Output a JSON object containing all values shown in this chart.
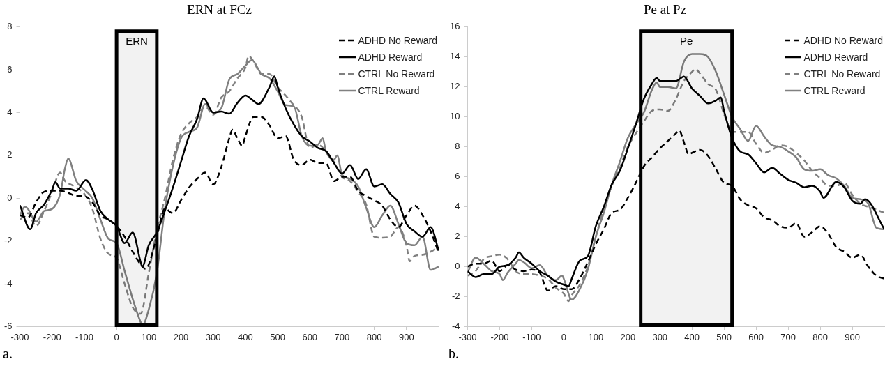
{
  "chart_data": [
    {
      "type": "line",
      "title": "ERN at FCz",
      "xlim": [
        -300,
        1000
      ],
      "xticks": [
        -300,
        -200,
        -100,
        0,
        100,
        200,
        300,
        400,
        500,
        600,
        700,
        800,
        900
      ],
      "ylim": [
        -6,
        8
      ],
      "yticks": [
        -6,
        -4,
        -2,
        0,
        2,
        4,
        6,
        8
      ],
      "grid": false,
      "legend": "top right",
      "marker": "none",
      "annotations": [
        "a."
      ],
      "bands": [
        {
          "axis": "x",
          "from": 0,
          "to": 125,
          "label": "ERN",
          "color": "#000000"
        }
      ],
      "series": [
        {
          "name": "ADHD No Reward",
          "color": "#000000",
          "line_style": "dashed",
          "x": [
            -300,
            -275,
            -250,
            -225,
            -200,
            -175,
            -150,
            -125,
            -100,
            -75,
            -50,
            -25,
            0,
            25,
            50,
            75,
            90,
            100,
            125,
            150,
            175,
            200,
            225,
            250,
            275,
            300,
            325,
            350,
            360,
            375,
            390,
            400,
            425,
            450,
            475,
            500,
            525,
            550,
            575,
            600,
            625,
            650,
            675,
            700,
            725,
            750,
            775,
            800,
            825,
            850,
            875,
            900,
            925,
            950,
            975,
            1000
          ],
          "values": [
            -0.8,
            -0.9,
            -0.2,
            0.3,
            0.35,
            0.35,
            0.25,
            0.1,
            0.1,
            -0.2,
            -0.8,
            -1.0,
            -1.3,
            -1.8,
            -2.5,
            -3.1,
            -3.3,
            -3.1,
            -1.8,
            -0.5,
            -0.7,
            -0.1,
            0.5,
            0.9,
            1.2,
            0.65,
            1.45,
            2.8,
            3.2,
            2.8,
            2.45,
            2.9,
            3.8,
            3.8,
            3.4,
            2.8,
            2.9,
            1.8,
            1.55,
            1.8,
            1.65,
            1.65,
            0.8,
            1.0,
            1.0,
            0.35,
            0.1,
            -0.1,
            -0.35,
            -1.0,
            -1.35,
            -0.8,
            -0.35,
            -0.8,
            -1.55,
            -2.55
          ]
        },
        {
          "name": "ADHD Reward",
          "color": "#000000",
          "line_style": "solid",
          "x": [
            -300,
            -268,
            -250,
            -225,
            -200,
            -190,
            -175,
            -150,
            -125,
            -95,
            -75,
            -50,
            -25,
            0,
            25,
            50,
            75,
            80,
            100,
            125,
            150,
            175,
            200,
            225,
            250,
            270,
            300,
            325,
            350,
            375,
            400,
            425,
            440,
            475,
            490,
            500,
            525,
            550,
            575,
            600,
            625,
            650,
            675,
            700,
            725,
            750,
            775,
            800,
            825,
            850,
            875,
            900,
            925,
            950,
            975,
            1000
          ],
          "values": [
            -0.33,
            -1.45,
            -0.7,
            -0.3,
            0.4,
            0.75,
            0.45,
            0.45,
            0.35,
            0.85,
            0.4,
            -0.6,
            -1.0,
            -1.3,
            -2.1,
            -1.6,
            -3.0,
            -3.2,
            -2.2,
            -1.6,
            -0.6,
            0.5,
            1.7,
            2.9,
            3.7,
            4.67,
            4.0,
            4.05,
            3.95,
            4.45,
            4.8,
            4.55,
            4.4,
            5.2,
            5.7,
            5.2,
            4.2,
            3.45,
            2.9,
            2.65,
            2.35,
            2.2,
            1.65,
            1.15,
            1.55,
            0.9,
            1.35,
            0.55,
            0.65,
            0.2,
            -0.2,
            -1.2,
            -1.55,
            -1.8,
            -1.35,
            -2.45
          ]
        },
        {
          "name": "CTRL No Reward",
          "color": "#808080",
          "line_style": "dashed",
          "x": [
            -300,
            -275,
            -250,
            -225,
            -200,
            -175,
            -160,
            -150,
            -125,
            -100,
            -75,
            -50,
            -25,
            0,
            25,
            50,
            75,
            100,
            125,
            150,
            175,
            200,
            225,
            250,
            275,
            300,
            325,
            350,
            375,
            400,
            410,
            425,
            450,
            475,
            500,
            525,
            550,
            565,
            575,
            600,
            625,
            650,
            675,
            700,
            725,
            750,
            775,
            800,
            825,
            850,
            875,
            900,
            910,
            925,
            950,
            975,
            1000
          ],
          "values": [
            -1.0,
            -0.7,
            -1.3,
            -0.6,
            0.3,
            1.2,
            0.8,
            0.7,
            0.5,
            0.2,
            -0.5,
            -1.9,
            -2.6,
            -2.8,
            -4.0,
            -5.1,
            -5.4,
            -3.5,
            -1.5,
            0.0,
            1.8,
            3.0,
            3.5,
            3.8,
            4.3,
            3.9,
            4.7,
            5.0,
            5.6,
            6.1,
            6.65,
            6.4,
            5.8,
            5.8,
            5.2,
            4.8,
            4.35,
            4.1,
            3.8,
            2.35,
            2.5,
            2.2,
            1.7,
            1.0,
            0.8,
            0.3,
            -0.3,
            -1.8,
            -1.85,
            -1.8,
            -1.35,
            -2.2,
            -2.95,
            -2.7,
            -2.65,
            -2.5,
            -2.3
          ]
        },
        {
          "name": "CTRL Reward",
          "color": "#808080",
          "line_style": "solid",
          "x": [
            -300,
            -285,
            -275,
            -250,
            -225,
            -200,
            -175,
            -160,
            -150,
            -125,
            -100,
            -75,
            -50,
            -25,
            0,
            25,
            50,
            75,
            80,
            100,
            125,
            150,
            175,
            200,
            225,
            250,
            275,
            300,
            325,
            350,
            375,
            400,
            420,
            450,
            475,
            500,
            525,
            550,
            575,
            600,
            625,
            640,
            650,
            675,
            685,
            700,
            725,
            750,
            775,
            800,
            825,
            850,
            875,
            900,
            925,
            950,
            975,
            1000
          ],
          "values": [
            -0.8,
            -0.4,
            -0.5,
            -1.1,
            -0.6,
            -0.5,
            0.2,
            1.4,
            1.85,
            0.8,
            0.4,
            0.0,
            -1.0,
            -1.9,
            -2.1,
            -3.4,
            -4.7,
            -5.8,
            -5.95,
            -5.2,
            -3.5,
            -0.5,
            1.5,
            2.8,
            3.1,
            3.3,
            4.4,
            4.0,
            4.2,
            5.55,
            5.8,
            6.2,
            6.45,
            5.8,
            5.6,
            5.0,
            4.35,
            4.3,
            2.9,
            2.45,
            2.5,
            2.8,
            2.2,
            1.8,
            2.0,
            1.1,
            0.9,
            0.55,
            -0.45,
            -1.35,
            -0.8,
            -0.35,
            -1.2,
            -2.1,
            -2.2,
            -1.8,
            -3.35,
            -3.2
          ]
        }
      ]
    },
    {
      "type": "line",
      "title": "Pe at Pz",
      "xlim": [
        -300,
        1000
      ],
      "xticks": [
        -300,
        -200,
        -100,
        0,
        100,
        200,
        300,
        400,
        500,
        600,
        700,
        800,
        900
      ],
      "ylim": [
        -4,
        16
      ],
      "yticks": [
        -4,
        -2,
        0,
        2,
        4,
        6,
        8,
        10,
        12,
        14,
        16
      ],
      "grid": false,
      "legend": "top right",
      "marker": "none",
      "annotations": [
        "b."
      ],
      "bands": [
        {
          "axis": "x",
          "from": 240,
          "to": 525,
          "label": "Pe",
          "color": "#000000"
        }
      ],
      "series": [
        {
          "name": "ADHD No Reward",
          "color": "#000000",
          "line_style": "dashed",
          "x": [
            -300,
            -275,
            -250,
            -225,
            -200,
            -175,
            -150,
            -125,
            -100,
            -75,
            -50,
            -25,
            0,
            25,
            50,
            75,
            100,
            125,
            150,
            175,
            200,
            225,
            250,
            275,
            300,
            325,
            350,
            360,
            375,
            390,
            400,
            425,
            450,
            475,
            500,
            525,
            550,
            575,
            600,
            625,
            650,
            675,
            700,
            725,
            750,
            775,
            800,
            825,
            850,
            875,
            900,
            925,
            950,
            975,
            1000
          ],
          "values": [
            0.0,
            0.2,
            0.2,
            0.4,
            -0.3,
            0.1,
            -0.2,
            -0.3,
            -0.2,
            -0.4,
            -1.6,
            -1.3,
            -1.5,
            -1.5,
            -0.8,
            0.3,
            1.5,
            2.5,
            3.6,
            3.8,
            4.6,
            5.6,
            6.7,
            7.3,
            7.9,
            8.4,
            8.9,
            9.1,
            8.3,
            7.5,
            7.6,
            7.8,
            7.4,
            6.5,
            5.6,
            5.4,
            4.5,
            4.1,
            3.9,
            3.3,
            3.1,
            2.7,
            2.6,
            2.9,
            2.0,
            2.3,
            2.7,
            2.2,
            1.3,
            1.0,
            0.6,
            0.8,
            0.0,
            -0.6,
            -0.8
          ]
        },
        {
          "name": "ADHD Reward",
          "color": "#000000",
          "line_style": "solid",
          "x": [
            -300,
            -275,
            -250,
            -225,
            -200,
            -175,
            -150,
            -140,
            -125,
            -100,
            -75,
            -50,
            -25,
            0,
            15,
            25,
            50,
            75,
            100,
            125,
            150,
            175,
            200,
            225,
            250,
            275,
            290,
            300,
            325,
            350,
            375,
            400,
            425,
            450,
            475,
            490,
            500,
            525,
            550,
            575,
            600,
            625,
            650,
            675,
            700,
            725,
            750,
            775,
            800,
            810,
            850,
            875,
            900,
            925,
            940,
            1000
          ],
          "values": [
            -0.3,
            -0.7,
            -0.5,
            -0.5,
            0.0,
            0.1,
            0.6,
            0.95,
            0.6,
            0.2,
            -0.3,
            -0.6,
            -1.0,
            -1.2,
            -1.3,
            -0.8,
            0.4,
            0.7,
            2.7,
            4.0,
            5.5,
            6.4,
            7.9,
            9.5,
            11.2,
            12.2,
            12.6,
            12.4,
            12.4,
            12.4,
            12.7,
            11.9,
            11.4,
            10.9,
            11.1,
            11.3,
            10.4,
            8.6,
            7.7,
            7.5,
            6.9,
            6.3,
            6.6,
            6.2,
            5.8,
            5.6,
            5.3,
            5.4,
            5.0,
            4.6,
            5.65,
            5.3,
            4.4,
            4.2,
            4.5,
            2.5
          ]
        },
        {
          "name": "CTRL No Reward",
          "color": "#808080",
          "line_style": "dashed",
          "x": [
            -300,
            -275,
            -250,
            -225,
            -200,
            -175,
            -150,
            -125,
            -100,
            -75,
            -50,
            -25,
            0,
            15,
            25,
            50,
            75,
            100,
            125,
            150,
            175,
            200,
            225,
            250,
            275,
            300,
            325,
            350,
            375,
            400,
            410,
            425,
            450,
            475,
            500,
            525,
            550,
            575,
            600,
            625,
            650,
            675,
            700,
            725,
            750,
            775,
            800,
            825,
            850,
            875,
            900,
            925,
            950,
            975,
            1000
          ],
          "values": [
            -0.6,
            -0.3,
            0.5,
            0.7,
            0.8,
            0.5,
            -0.3,
            -0.5,
            -0.5,
            -0.6,
            -0.8,
            -1.4,
            -1.8,
            -2.3,
            -1.9,
            -1.2,
            0.0,
            2.0,
            3.9,
            5.4,
            6.6,
            8.0,
            8.9,
            9.7,
            10.4,
            10.5,
            10.4,
            11.2,
            12.4,
            13.0,
            13.2,
            12.9,
            12.2,
            11.8,
            10.2,
            9.0,
            9.0,
            9.0,
            8.2,
            7.6,
            7.8,
            8.1,
            8.0,
            7.6,
            7.1,
            6.4,
            5.9,
            5.4,
            5.4,
            5.6,
            4.8,
            4.2,
            4.0,
            3.8,
            3.6
          ]
        },
        {
          "name": "CTRL Reward",
          "color": "#808080",
          "line_style": "solid",
          "x": [
            -300,
            -275,
            -250,
            -225,
            -200,
            -190,
            -175,
            -150,
            -140,
            -125,
            -100,
            -75,
            -50,
            -25,
            -5,
            0,
            25,
            50,
            75,
            100,
            125,
            150,
            175,
            200,
            225,
            250,
            275,
            290,
            300,
            325,
            350,
            375,
            400,
            425,
            450,
            475,
            500,
            525,
            550,
            575,
            600,
            625,
            650,
            675,
            700,
            725,
            750,
            775,
            800,
            825,
            850,
            875,
            900,
            925,
            950,
            975,
            1000
          ],
          "values": [
            -0.4,
            0.6,
            0.2,
            -0.3,
            -0.5,
            -0.9,
            -0.4,
            0.2,
            0.45,
            0.3,
            -0.1,
            0.1,
            -0.6,
            -0.9,
            -0.6,
            -0.8,
            -2.2,
            -1.5,
            -0.2,
            2.0,
            3.6,
            5.5,
            7.0,
            8.6,
            9.5,
            10.3,
            11.8,
            12.3,
            12.0,
            12.0,
            11.9,
            13.7,
            14.2,
            14.2,
            14.0,
            13.0,
            11.5,
            10.0,
            9.2,
            8.4,
            9.4,
            8.7,
            8.1,
            8.0,
            7.7,
            7.3,
            6.5,
            6.4,
            6.5,
            6.1,
            5.9,
            5.4,
            4.6,
            4.5,
            4.2,
            2.6,
            2.5
          ]
        }
      ]
    }
  ]
}
